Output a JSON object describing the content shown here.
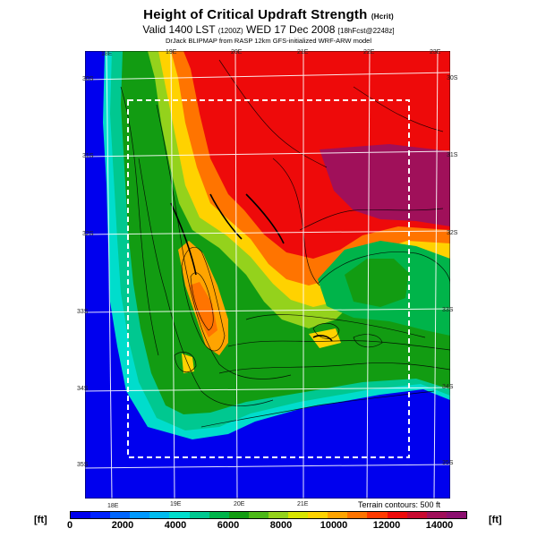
{
  "header": {
    "title": "Height of Critical Updraft Strength",
    "title_unit": "(Hcrit)",
    "valid": "Valid 1400 LST",
    "valid_utc": "(1200Z)",
    "valid_date": "WED 17 Dec 2008",
    "valid_run": "[18hFcst@2248z]",
    "subtitle": "DrJack BLIPMAP from RASP 12km GFS-initialized WRF-ARW model"
  },
  "map": {
    "lon_labels_top": [
      "18E",
      "19E",
      "20E",
      "21E",
      "22E",
      "23E"
    ],
    "lon_labels_bottom": [
      "18E",
      "19E",
      "20E",
      "21E"
    ],
    "lat_labels_left": [
      "30S",
      "31S",
      "32S",
      "33S",
      "34S",
      "35S"
    ],
    "lat_labels_right": [
      "30S",
      "31S",
      "32S",
      "33S",
      "34S",
      "35S"
    ],
    "contour_note": "Terrain contours: 500 ft"
  },
  "colorbar": {
    "unit_left": "[ft]",
    "unit_right": "[ft]",
    "ticks": [
      "0",
      "2000",
      "4000",
      "6000",
      "8000",
      "10000",
      "12000",
      "14000"
    ],
    "colors": [
      "#0000ee",
      "#0022ff",
      "#0066ff",
      "#0099ff",
      "#00bbee",
      "#00ddcc",
      "#00c890",
      "#00b44a",
      "#129c12",
      "#4cb818",
      "#94d21c",
      "#d8e400",
      "#ffd200",
      "#ffa400",
      "#ff7400",
      "#ff3a00",
      "#ee0a0a",
      "#c80a30",
      "#a0105a",
      "#8c1070"
    ]
  }
}
